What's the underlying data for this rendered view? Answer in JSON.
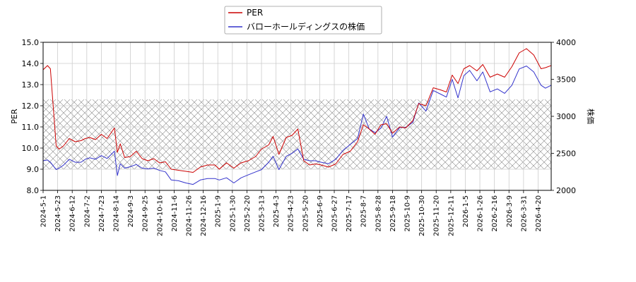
{
  "chart_data": {
    "type": "line",
    "title": "",
    "xlabel": "",
    "ylabel": "PER",
    "y2label": "株価",
    "ylim": [
      8.0,
      15.0
    ],
    "y2lim": [
      2000,
      4000
    ],
    "yticks": [
      "8.0",
      "9.0",
      "10.0",
      "11.0",
      "12.0",
      "13.0",
      "14.0",
      "15.0"
    ],
    "y2ticks": [
      "2000",
      "2500",
      "3000",
      "3500",
      "4000"
    ],
    "grid": true,
    "legend": "top-center",
    "shaded_band": {
      "y_from": 9.0,
      "y_to": 12.3,
      "pattern": "crosshatch"
    },
    "xticks": [
      "2024-5-1",
      "2024-5-23",
      "2024-6-12",
      "2024-7-2",
      "2024-7-23",
      "2024-8-14",
      "2024-9-3",
      "2024-9-25",
      "2024-10-16",
      "2024-11-6",
      "2024-11-26",
      "2024-12-16",
      "2025-1-9",
      "2025-1-30",
      "2025-2-20",
      "2025-3-13",
      "2025-4-3",
      "2025-4-23",
      "2025-5-20",
      "2025-6-9",
      "2025-6-27",
      "2025-7-17",
      "2025-8-7",
      "2025-8-28",
      "2025-9-18",
      "2025-10-9",
      "2025-10-30",
      "2025-11-20",
      "2025-12-11",
      "2026-1-5",
      "2026-1-26",
      "2026-2-16",
      "2026-3-9",
      "2026-3-31",
      "2026-4-20"
    ],
    "x_index_max": 34.9,
    "series": [
      {
        "name": "PER",
        "color": "#cc0000",
        "axis": "left",
        "x": [
          0,
          0.3,
          0.5,
          0.9,
          1.1,
          1.4,
          1.8,
          2.2,
          2.6,
          2.9,
          3.2,
          3.6,
          4.0,
          4.4,
          4.7,
          4.9,
          5.1,
          5.3,
          5.6,
          6.0,
          6.4,
          6.8,
          7.2,
          7.6,
          8.0,
          8.4,
          8.8,
          9.3,
          9.8,
          10.3,
          10.8,
          11.3,
          11.8,
          12.1,
          12.6,
          13.1,
          13.6,
          14.1,
          14.6,
          15.0,
          15.5,
          15.8,
          16.2,
          16.7,
          17.1,
          17.5,
          17.9,
          18.3,
          18.7,
          19.1,
          19.6,
          20.1,
          20.6,
          21.1,
          21.6,
          22.0,
          22.4,
          22.8,
          23.2,
          23.6,
          24.0,
          24.5,
          24.9,
          25.4,
          25.8,
          26.3,
          26.8,
          27.3,
          27.7,
          28.1,
          28.5,
          28.9,
          29.3,
          29.8,
          30.2,
          30.7,
          31.2,
          31.7,
          32.2,
          32.7,
          33.2,
          33.7,
          34.2,
          34.5,
          34.9
        ],
        "y": [
          13.7,
          13.9,
          13.75,
          10.1,
          9.95,
          10.1,
          10.45,
          10.3,
          10.35,
          10.45,
          10.5,
          10.4,
          10.65,
          10.45,
          10.75,
          10.95,
          9.8,
          10.2,
          9.55,
          9.6,
          9.85,
          9.5,
          9.4,
          9.5,
          9.3,
          9.35,
          9.0,
          8.95,
          8.9,
          8.85,
          9.1,
          9.2,
          9.2,
          9.0,
          9.3,
          9.05,
          9.3,
          9.4,
          9.6,
          9.95,
          10.15,
          10.55,
          9.7,
          10.5,
          10.6,
          10.9,
          9.4,
          9.2,
          9.25,
          9.2,
          9.1,
          9.25,
          9.7,
          9.85,
          10.3,
          11.1,
          10.9,
          10.65,
          11.1,
          11.15,
          10.7,
          11.0,
          10.95,
          11.3,
          12.1,
          12.0,
          12.85,
          12.75,
          12.65,
          13.45,
          13.05,
          13.75,
          13.9,
          13.65,
          13.95,
          13.35,
          13.5,
          13.35,
          13.85,
          14.5,
          14.7,
          14.4,
          13.75,
          13.8,
          13.9
        ]
      },
      {
        "name": "バローホールディングスの株価",
        "color": "#3333cc",
        "axis": "right",
        "x": [
          0,
          0.3,
          0.5,
          0.9,
          1.1,
          1.4,
          1.8,
          2.2,
          2.6,
          2.9,
          3.2,
          3.6,
          4.0,
          4.4,
          4.7,
          4.9,
          5.1,
          5.3,
          5.6,
          6.0,
          6.4,
          6.8,
          7.2,
          7.6,
          8.0,
          8.4,
          8.8,
          9.3,
          9.8,
          10.3,
          10.8,
          11.3,
          11.8,
          12.1,
          12.6,
          13.1,
          13.6,
          14.1,
          14.6,
          15.0,
          15.5,
          15.8,
          16.2,
          16.7,
          17.1,
          17.5,
          17.9,
          18.3,
          18.7,
          19.1,
          19.6,
          20.1,
          20.6,
          21.1,
          21.6,
          22.0,
          22.4,
          22.8,
          23.2,
          23.6,
          24.0,
          24.5,
          24.9,
          25.4,
          25.8,
          26.3,
          26.8,
          27.3,
          27.7,
          28.1,
          28.5,
          28.9,
          29.3,
          29.8,
          30.2,
          30.7,
          31.2,
          31.7,
          32.2,
          32.7,
          33.2,
          33.7,
          34.2,
          34.5,
          34.9
        ],
        "y": [
          2400,
          2410,
          2380,
          2280,
          2300,
          2340,
          2420,
          2380,
          2380,
          2420,
          2440,
          2420,
          2470,
          2430,
          2490,
          2530,
          2200,
          2360,
          2300,
          2320,
          2350,
          2300,
          2290,
          2300,
          2270,
          2250,
          2140,
          2130,
          2100,
          2080,
          2140,
          2160,
          2160,
          2140,
          2170,
          2100,
          2170,
          2210,
          2250,
          2280,
          2380,
          2460,
          2280,
          2460,
          2500,
          2560,
          2420,
          2400,
          2400,
          2380,
          2360,
          2420,
          2540,
          2620,
          2700,
          3030,
          2830,
          2780,
          2840,
          3000,
          2720,
          2850,
          2850,
          2920,
          3180,
          3070,
          3350,
          3300,
          3260,
          3500,
          3250,
          3550,
          3620,
          3480,
          3600,
          3330,
          3370,
          3310,
          3420,
          3640,
          3680,
          3600,
          3420,
          3380,
          3420
        ]
      }
    ]
  }
}
